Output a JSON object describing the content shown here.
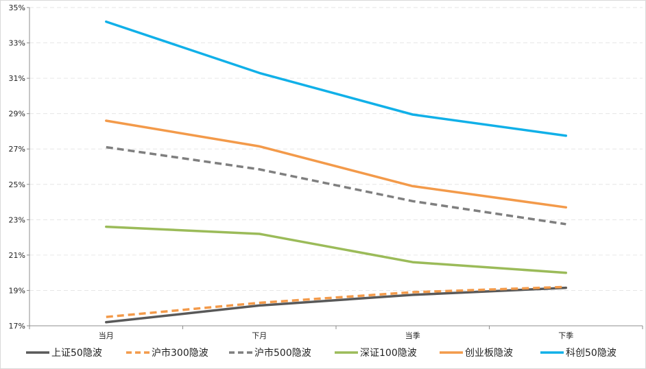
{
  "chart_data": {
    "type": "line",
    "title": "",
    "xlabel": "",
    "ylabel": "",
    "categories": [
      "当月",
      "下月",
      "当季",
      "下季"
    ],
    "ylim": [
      17,
      35
    ],
    "yticks": [
      "17%",
      "19%",
      "21%",
      "23%",
      "25%",
      "27%",
      "29%",
      "31%",
      "33%",
      "35%"
    ],
    "grid": true,
    "legend_position": "bottom",
    "series": [
      {
        "name": "上证50隐波",
        "values": [
          17.2,
          18.15,
          18.75,
          19.15
        ],
        "color": "#595959",
        "dash": false
      },
      {
        "name": "沪市300隐波",
        "values": [
          17.5,
          18.3,
          18.9,
          19.2
        ],
        "color": "#f39a4a",
        "dash": true
      },
      {
        "name": "沪市500隐波",
        "values": [
          27.1,
          25.85,
          24.05,
          22.75
        ],
        "color": "#7f7f7f",
        "dash": true
      },
      {
        "name": "深证100隐波",
        "values": [
          22.6,
          22.2,
          20.6,
          20.0
        ],
        "color": "#9bbb59",
        "dash": false
      },
      {
        "name": "创业板隐波",
        "values": [
          28.6,
          27.15,
          24.9,
          23.7
        ],
        "color": "#f39a4a",
        "dash": false
      },
      {
        "name": "科创50隐波",
        "values": [
          34.2,
          31.3,
          28.95,
          27.75
        ],
        "color": "#11b0e8",
        "dash": false
      }
    ]
  }
}
